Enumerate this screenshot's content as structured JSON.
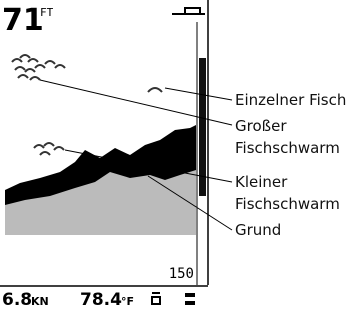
{
  "screen": {
    "depth": "71",
    "depth_unit": "FT",
    "range_bottom": "150"
  },
  "status_bar": {
    "speed": "6.8",
    "speed_unit": "KN",
    "temperature": "78.4",
    "temperature_unit": "°F"
  },
  "callouts": [
    {
      "lines": [
        "Einzelner Fisch"
      ]
    },
    {
      "lines": [
        "Großer",
        "Fischschwarm"
      ]
    },
    {
      "lines": [
        "Kleiner",
        "Fischschwarm"
      ]
    },
    {
      "lines": [
        "Grund"
      ]
    }
  ]
}
